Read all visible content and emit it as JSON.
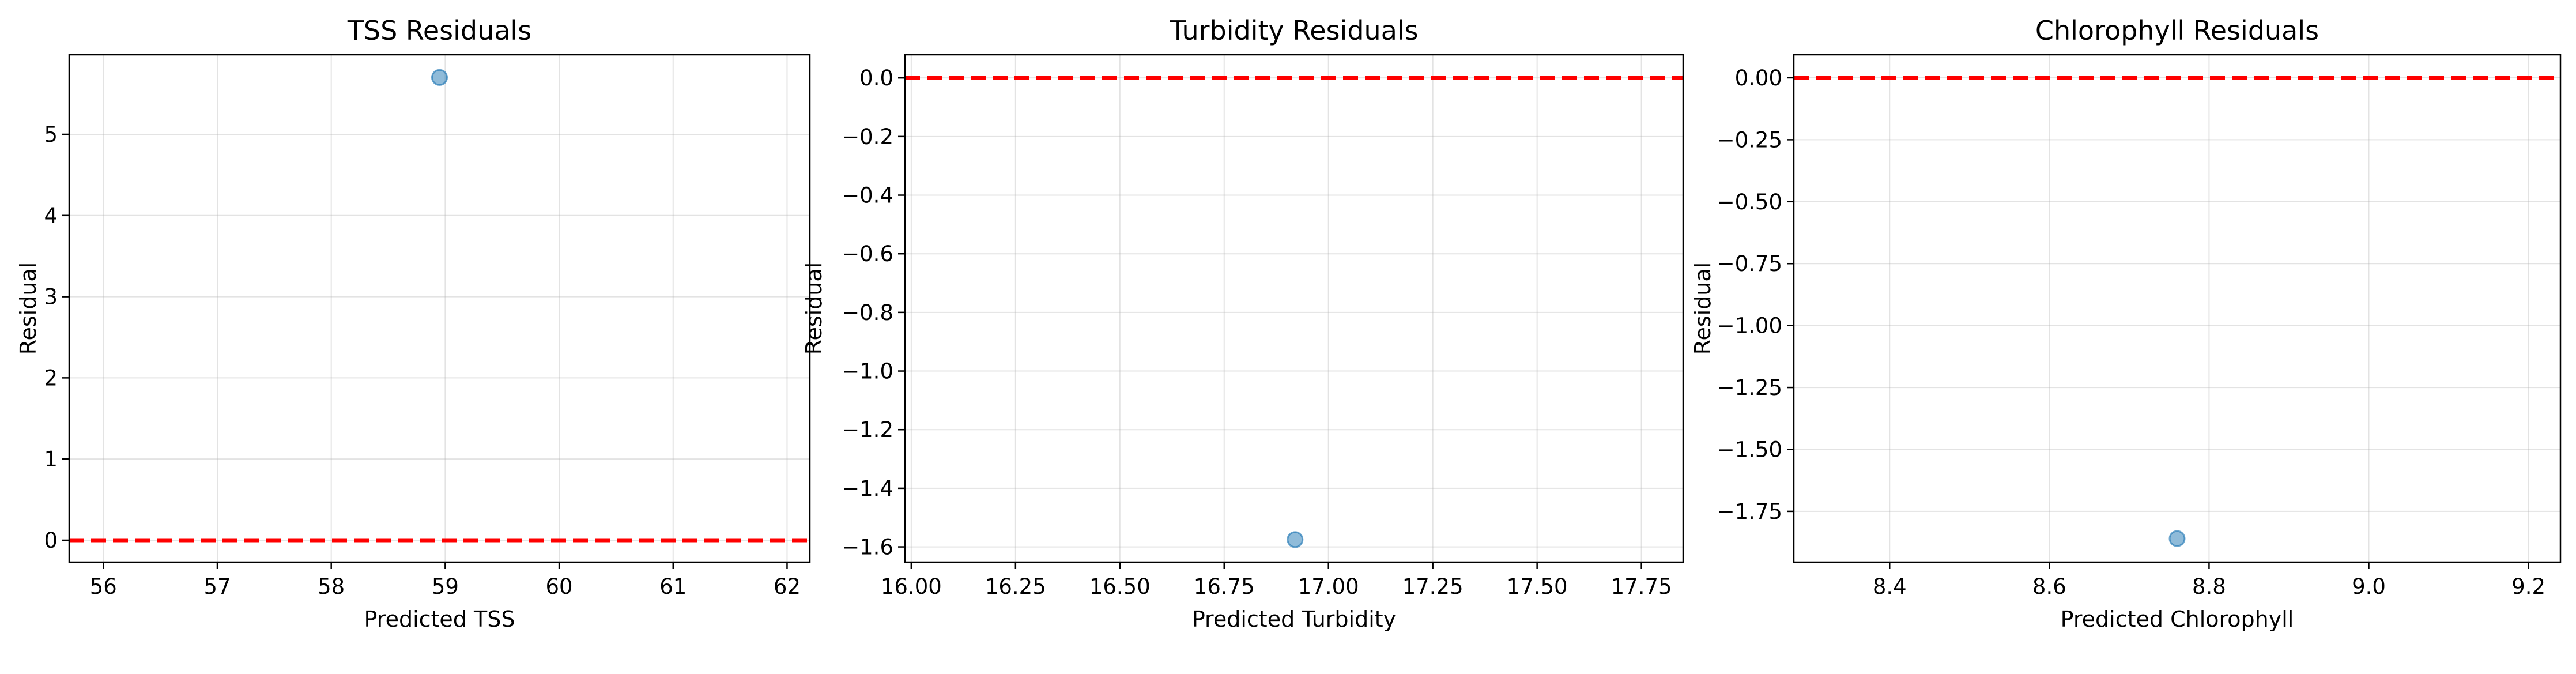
{
  "chart_data": [
    {
      "type": "scatter",
      "title": "TSS Residuals",
      "xlabel": "Predicted TSS",
      "ylabel": "Residual",
      "xlim": [
        55.7,
        62.2
      ],
      "ylim": [
        -0.27,
        5.98
      ],
      "xticks": [
        56,
        57,
        58,
        59,
        60,
        61,
        62
      ],
      "yticks": [
        0,
        1,
        2,
        3,
        4,
        5
      ],
      "xtick_labels": [
        "56",
        "57",
        "58",
        "59",
        "60",
        "61",
        "62"
      ],
      "ytick_labels": [
        "0",
        "1",
        "2",
        "3",
        "4",
        "5"
      ],
      "points": [
        {
          "x": 58.95,
          "y": 5.7
        }
      ],
      "reference_line_y": 0,
      "grid": true
    },
    {
      "type": "scatter",
      "title": "Turbidity Residuals",
      "xlabel": "Predicted Turbidity",
      "ylabel": "Residual",
      "xlim": [
        15.985,
        17.85
      ],
      "ylim": [
        -1.652,
        0.079
      ],
      "xticks": [
        16.0,
        16.25,
        16.5,
        16.75,
        17.0,
        17.25,
        17.5,
        17.75
      ],
      "yticks": [
        0.0,
        -0.2,
        -0.4,
        -0.6,
        -0.8,
        -1.0,
        -1.2,
        -1.4,
        -1.6
      ],
      "xtick_labels": [
        "16.00",
        "16.25",
        "16.50",
        "16.75",
        "17.00",
        "17.25",
        "17.50",
        "17.75"
      ],
      "ytick_labels": [
        "0.0",
        "−0.2",
        "−0.4",
        "−0.6",
        "−0.8",
        "−1.0",
        "−1.2",
        "−1.4",
        "−1.6"
      ],
      "points": [
        {
          "x": 16.92,
          "y": -1.575
        }
      ],
      "reference_line_y": 0,
      "grid": true
    },
    {
      "type": "scatter",
      "title": "Chlorophyll Residuals",
      "xlabel": "Predicted Chlorophyll",
      "ylabel": "Residual",
      "xlim": [
        8.28,
        9.24
      ],
      "ylim": [
        -1.955,
        0.093
      ],
      "xticks": [
        8.4,
        8.6,
        8.8,
        9.0,
        9.2
      ],
      "yticks": [
        0.0,
        -0.25,
        -0.5,
        -0.75,
        -1.0,
        -1.25,
        -1.5,
        -1.75
      ],
      "xtick_labels": [
        "8.4",
        "8.6",
        "8.8",
        "9.0",
        "9.2"
      ],
      "ytick_labels": [
        "0.00",
        "−0.25",
        "−0.50",
        "−0.75",
        "−1.00",
        "−1.25",
        "−1.50",
        "−1.75"
      ],
      "points": [
        {
          "x": 8.76,
          "y": -1.86
        }
      ],
      "reference_line_y": 0,
      "grid": true
    }
  ],
  "colors": {
    "point_fill": "#1f77b4",
    "reference_line": "#ff0000",
    "grid": "#b0b0b0",
    "axes": "#000000"
  }
}
